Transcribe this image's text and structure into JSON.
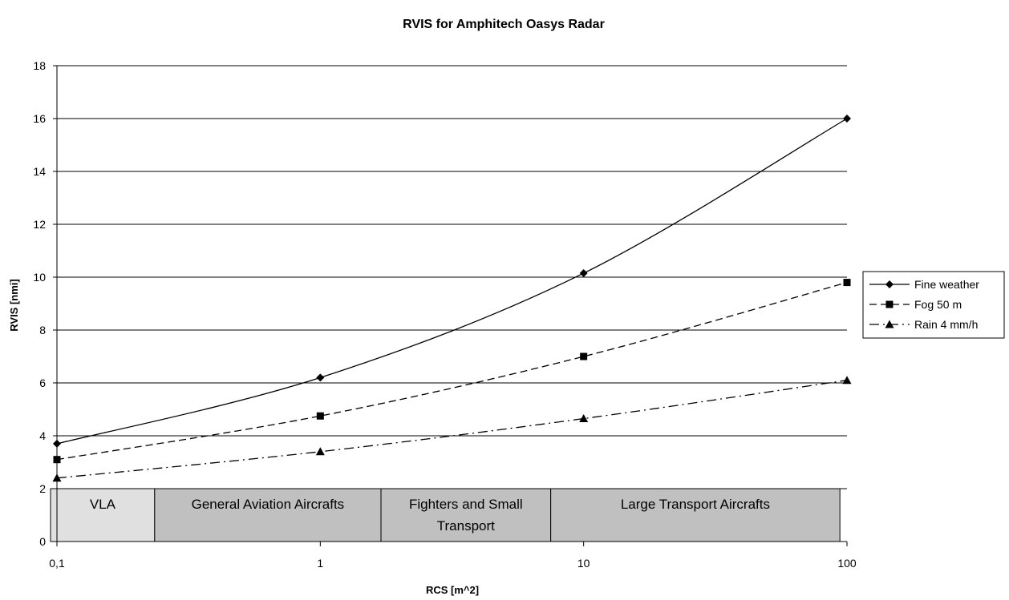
{
  "chart_data": {
    "type": "line",
    "title": "RVIS for Amphitech Oasys Radar",
    "xlabel": "RCS [m^2]",
    "ylabel": "RVIS [nmi]",
    "x_scale": "log",
    "x": [
      0.1,
      1,
      10,
      100
    ],
    "x_tick_labels": [
      "0,1",
      "1",
      "10",
      "100"
    ],
    "ylim": [
      0,
      18
    ],
    "y_ticks": [
      0,
      2,
      4,
      6,
      8,
      10,
      12,
      14,
      16,
      18
    ],
    "grid": "horizontal",
    "legend_position": "right",
    "series": [
      {
        "name": "Fine weather",
        "values": [
          3.7,
          6.2,
          10.15,
          16.0
        ],
        "marker": "diamond",
        "dash": "solid",
        "color": "#000000"
      },
      {
        "name": "Fog 50 m",
        "values": [
          3.1,
          4.75,
          7.0,
          9.8
        ],
        "marker": "square",
        "dash": "dashed",
        "color": "#000000"
      },
      {
        "name": "Rain 4 mm/h",
        "values": [
          2.4,
          3.4,
          4.65,
          6.1
        ],
        "marker": "triangle",
        "dash": "dashdot",
        "color": "#000000"
      }
    ],
    "bands": [
      {
        "lines": [
          "VLA"
        ],
        "from": 0.1,
        "to": 0.235,
        "color": "#e0e0e0"
      },
      {
        "lines": [
          "General Aviation Aircrafts"
        ],
        "from": 0.235,
        "to": 1.7,
        "color": "#c0c0c0"
      },
      {
        "lines": [
          "Fighters and Small",
          "Transport"
        ],
        "from": 1.7,
        "to": 7.5,
        "color": "#c0c0c0"
      },
      {
        "lines": [
          "Large Transport Aircrafts"
        ],
        "from": 7.5,
        "to": 94,
        "color": "#c0c0c0"
      }
    ],
    "band_y_range": [
      0,
      2
    ]
  }
}
